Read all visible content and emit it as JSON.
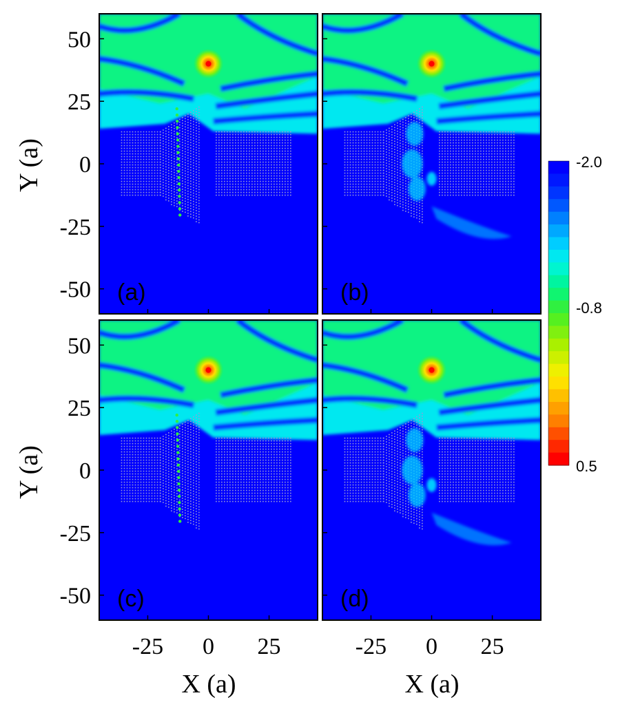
{
  "chart_data": {
    "type": "heatmap",
    "title": "",
    "xlabel": "X (a)",
    "ylabel": "Y (a)",
    "xlim": [
      -45,
      45
    ],
    "ylim": [
      -60,
      60
    ],
    "x_ticks": [
      -25,
      0,
      25
    ],
    "y_ticks": [
      50,
      25,
      0,
      -25,
      -50
    ],
    "x_tick_labels": [
      "-25",
      "0",
      "25"
    ],
    "y_tick_labels": [
      "50",
      "25",
      "0",
      "-25",
      "-50"
    ],
    "source_position": {
      "x": 0,
      "y": 40
    },
    "colorbar": {
      "min": -2.0,
      "max": 0.5,
      "tick_values": [
        -2.0,
        -0.8,
        0.5
      ],
      "tick_labels": [
        "-2.0",
        "-0.8",
        "0.5"
      ],
      "levels": 24,
      "colors": [
        "#0000ff",
        "#0018ff",
        "#0035ff",
        "#0058ff",
        "#0080ff",
        "#00a8ff",
        "#00cdff",
        "#00e8f0",
        "#00f5d0",
        "#00f5a0",
        "#10f570",
        "#30f040",
        "#55f020",
        "#80f010",
        "#aaf000",
        "#ccf000",
        "#eef000",
        "#ffe000",
        "#ffc000",
        "#ffa000",
        "#ff8000",
        "#ff5000",
        "#ff2800",
        "#ff0000"
      ]
    },
    "panels": [
      {
        "label": "(a)",
        "scatter_pattern": "edge"
      },
      {
        "label": "(b)",
        "scatter_pattern": "bulk"
      },
      {
        "label": "(c)",
        "scatter_pattern": "edge"
      },
      {
        "label": "(d)",
        "scatter_pattern": "bulk"
      }
    ],
    "colors": {
      "background": "#0000ff",
      "lattice_dot": "#9a9ad6",
      "source": "#ff0000"
    }
  }
}
